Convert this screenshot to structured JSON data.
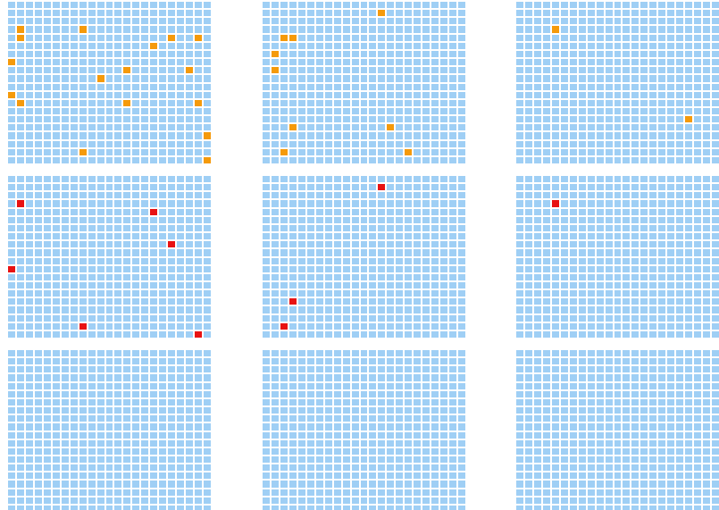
{
  "grid": {
    "rows": 20,
    "cols": 20
  },
  "colors": {
    "background": "#ffffff",
    "cell": "#9fcff5",
    "orange": "#f59a0b",
    "red": "#e81212"
  },
  "panels": [
    {
      "name": "panel-r1-c1",
      "color": "orange",
      "marked": [
        [
          1,
          3
        ],
        [
          8,
          3
        ],
        [
          1,
          4
        ],
        [
          18,
          4
        ],
        [
          21,
          4
        ],
        [
          16,
          5
        ],
        [
          0,
          7
        ],
        [
          13,
          8
        ],
        [
          20,
          8
        ],
        [
          10,
          9
        ],
        [
          0,
          11
        ],
        [
          1,
          12
        ],
        [
          13,
          12
        ],
        [
          21,
          12
        ],
        [
          22,
          16
        ],
        [
          8,
          18
        ],
        [
          22,
          19
        ]
      ]
    },
    {
      "name": "panel-r1-c2",
      "color": "orange",
      "marked": [
        [
          13,
          1
        ],
        [
          2,
          4
        ],
        [
          3,
          4
        ],
        [
          1,
          6
        ],
        [
          1,
          8
        ],
        [
          3,
          15
        ],
        [
          14,
          15
        ],
        [
          2,
          18
        ],
        [
          16,
          18
        ]
      ]
    },
    {
      "name": "panel-r1-c3",
      "color": "orange",
      "marked": [
        [
          4,
          3
        ],
        [
          19,
          14
        ]
      ]
    },
    {
      "name": "panel-r2-c1",
      "color": "red",
      "marked": [
        [
          1,
          3
        ],
        [
          16,
          4
        ],
        [
          18,
          8
        ],
        [
          0,
          11
        ],
        [
          8,
          18
        ],
        [
          21,
          19
        ]
      ]
    },
    {
      "name": "panel-r2-c2",
      "color": "red",
      "marked": [
        [
          13,
          1
        ],
        [
          3,
          15
        ],
        [
          2,
          18
        ]
      ]
    },
    {
      "name": "panel-r2-c3",
      "color": "red",
      "marked": [
        [
          4,
          3
        ]
      ]
    },
    {
      "name": "panel-r3-c1",
      "color": "orange",
      "marked": []
    },
    {
      "name": "panel-r3-c2",
      "color": "orange",
      "marked": []
    },
    {
      "name": "panel-r3-c3",
      "color": "orange",
      "marked": []
    }
  ]
}
